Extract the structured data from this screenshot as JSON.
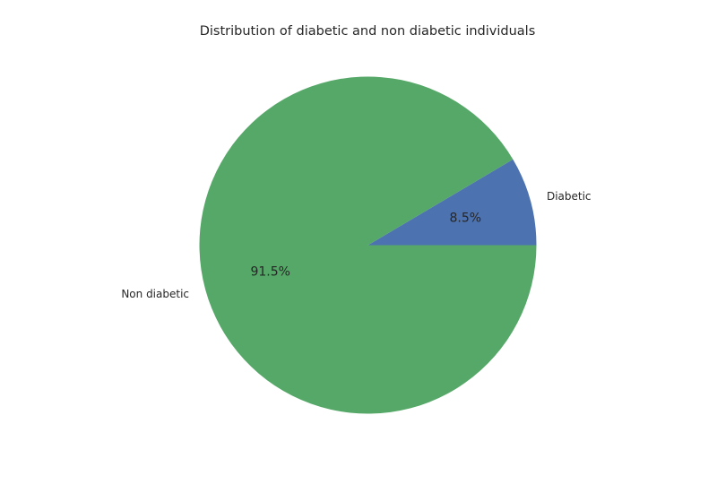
{
  "chart_data": {
    "type": "pie",
    "title": "Distribution of diabetic and non diabetic individuals",
    "start_angle_deg": 0,
    "direction": "counterclockwise",
    "slices": [
      {
        "label": "Diabetic",
        "value": 8.5,
        "pct_label": "8.5%",
        "color": "#4c72b0"
      },
      {
        "label": "Non diabetic",
        "value": 91.5,
        "pct_label": "91.5%",
        "color": "#55a868"
      }
    ]
  }
}
